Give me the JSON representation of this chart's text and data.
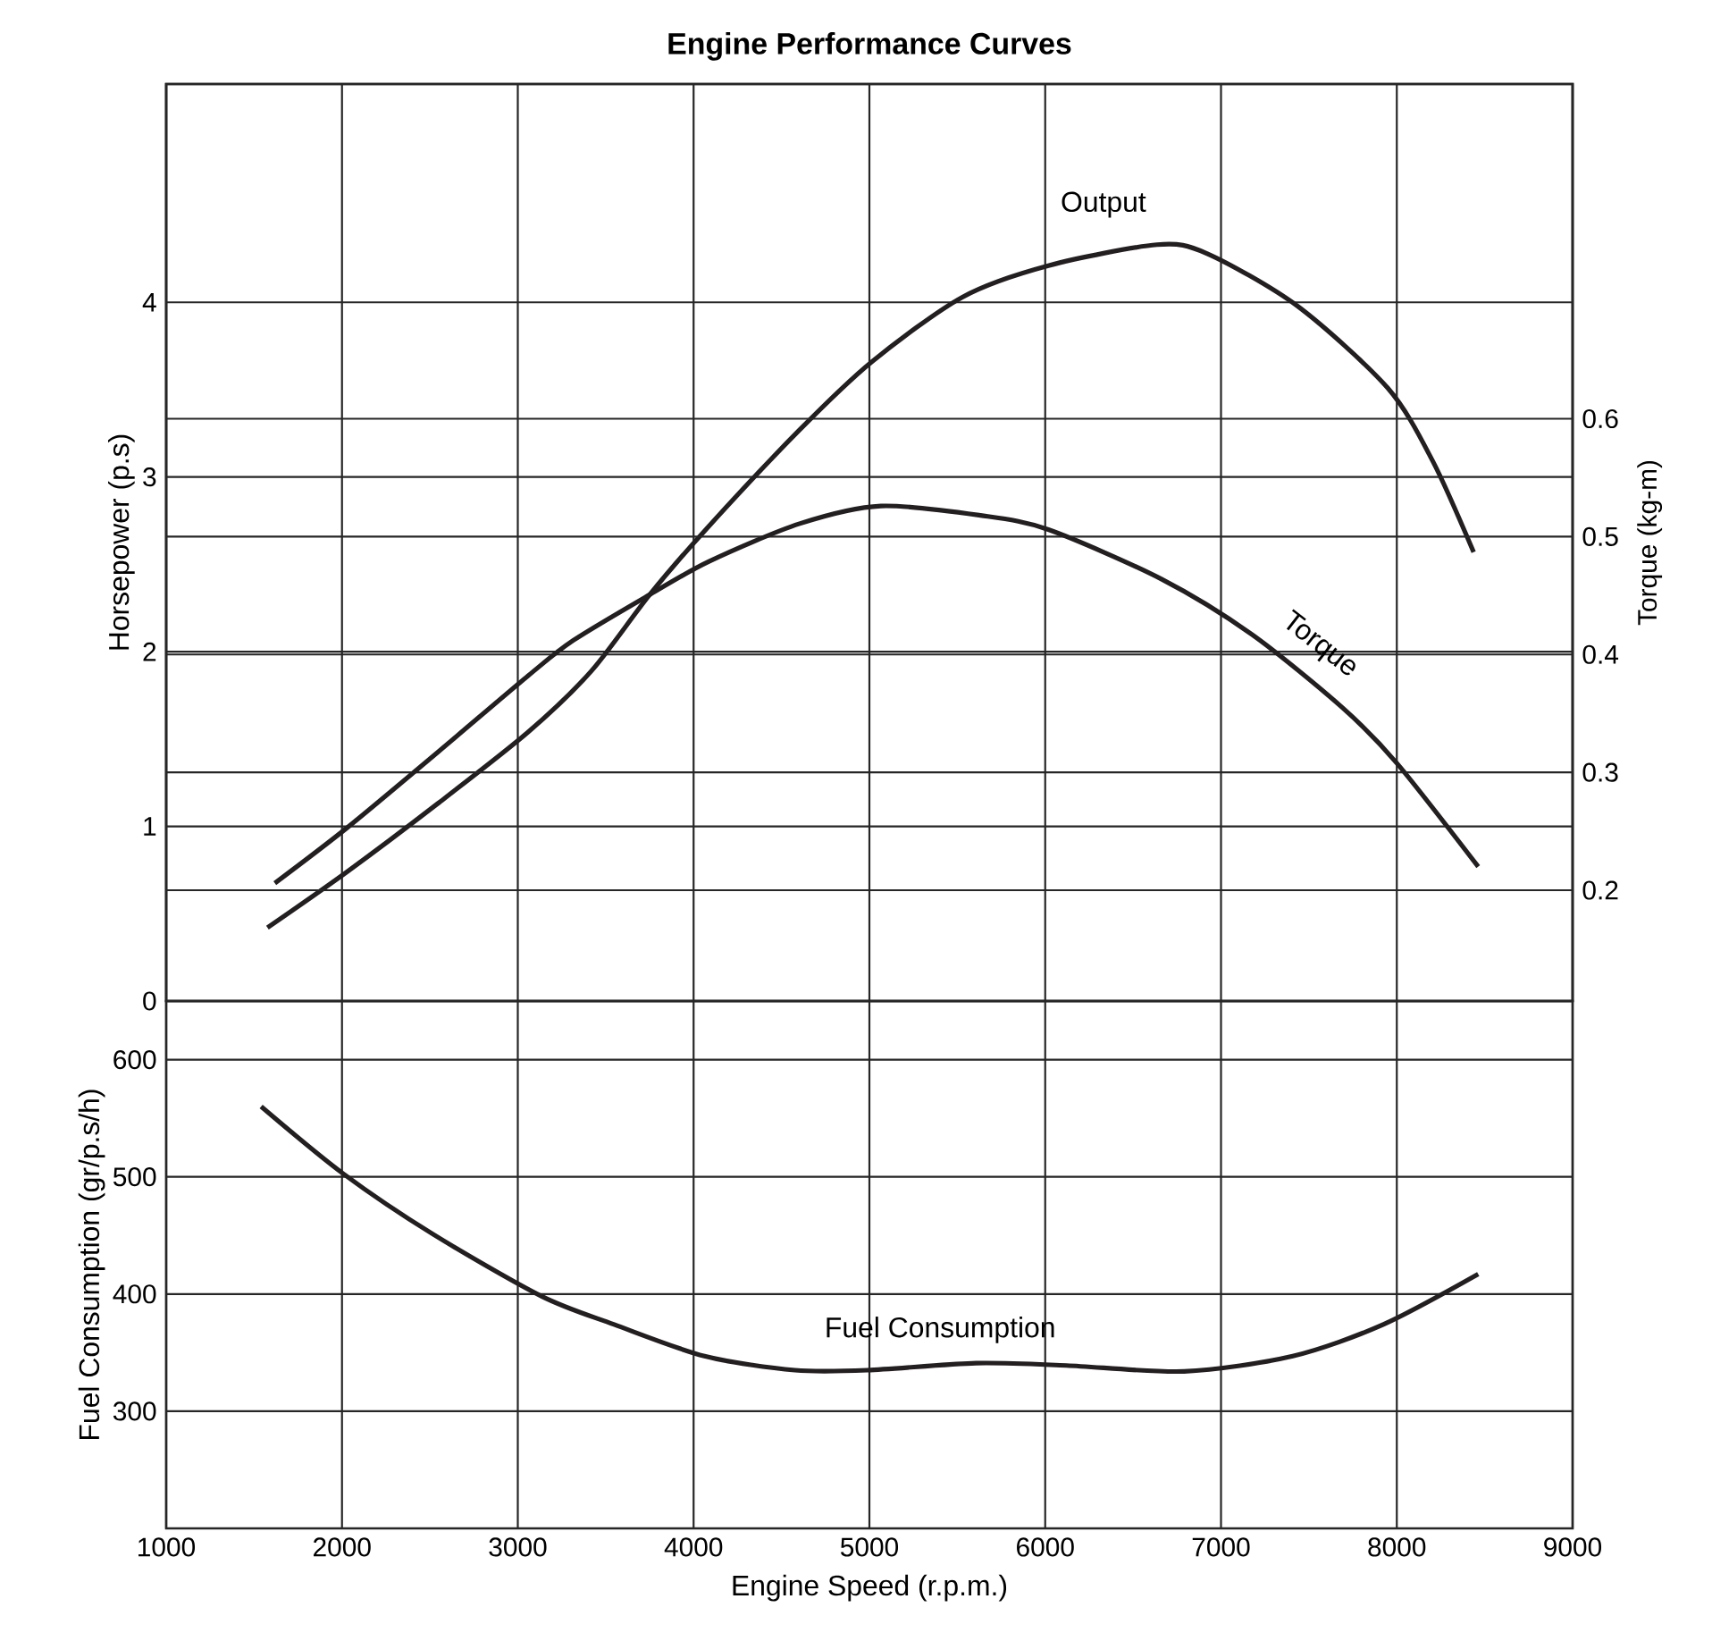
{
  "chart_data": [
    {
      "type": "line",
      "title": "Engine Performance Curves",
      "ylabel": "Horsepower (p.s)",
      "y2label": "Torque (kg-m)",
      "xlim": [
        1000,
        9000
      ],
      "xticks": [
        1000,
        2000,
        3000,
        4000,
        5000,
        6000,
        7000,
        8000,
        9000
      ],
      "ylim": [
        0,
        5.25
      ],
      "yticks": [
        0,
        1,
        2,
        3,
        4
      ],
      "y2lim": [
        0.106,
        0.884
      ],
      "y2ticks": [
        0.2,
        0.3,
        0.4,
        0.5,
        0.6
      ],
      "grid": true,
      "tick_labels": "y",
      "marker": "none",
      "line_style": "solid",
      "series": [
        {
          "name": "Output",
          "color": "#231f20",
          "x": [
            1576,
            2029,
            2544,
            3059,
            3419,
            3753,
            4088,
            4603,
            5014,
            5529,
            6018,
            6636,
            6919,
            7433,
            7948,
            8205,
            8437
          ],
          "values": [
            0.42,
            0.74,
            1.13,
            1.54,
            1.89,
            2.33,
            2.72,
            3.27,
            3.66,
            4.03,
            4.21,
            4.33,
            4.28,
            3.98,
            3.51,
            3.09,
            2.57
          ]
        },
        {
          "name": "Torque",
          "color": "#231f20",
          "axis": "y2",
          "x": [
            1618,
            2029,
            2544,
            3059,
            3316,
            3753,
            4088,
            4603,
            5066,
            5632,
            6018,
            6661,
            7176,
            7690,
            7999,
            8463
          ],
          "values": [
            0.206,
            0.253,
            0.317,
            0.382,
            0.412,
            0.451,
            0.479,
            0.511,
            0.526,
            0.518,
            0.506,
            0.464,
            0.417,
            0.355,
            0.308,
            0.22
          ]
        }
      ]
    },
    {
      "type": "line",
      "xlabel": "Engine Speed (r.p.m.)",
      "ylabel": "Fuel Consumption (gr/p.s/h)",
      "xlim": [
        1000,
        9000
      ],
      "xticks": [
        1000,
        2000,
        3000,
        4000,
        5000,
        6000,
        7000,
        8000,
        9000
      ],
      "ylim": [
        200,
        650
      ],
      "yticks": [
        300,
        400,
        500,
        600
      ],
      "grid": true,
      "marker": "none",
      "line_style": "solid",
      "series": [
        {
          "name": "Fuel Consumption",
          "color": "#231f20",
          "x": [
            1540,
            2004,
            2518,
            3136,
            3548,
            4062,
            4577,
            4989,
            5606,
            6121,
            6790,
            7408,
            7923,
            8463
          ],
          "values": [
            560,
            503,
            451,
            398,
            374,
            347,
            335,
            335,
            341,
            339,
            334,
            347,
            374,
            417
          ]
        }
      ]
    }
  ]
}
